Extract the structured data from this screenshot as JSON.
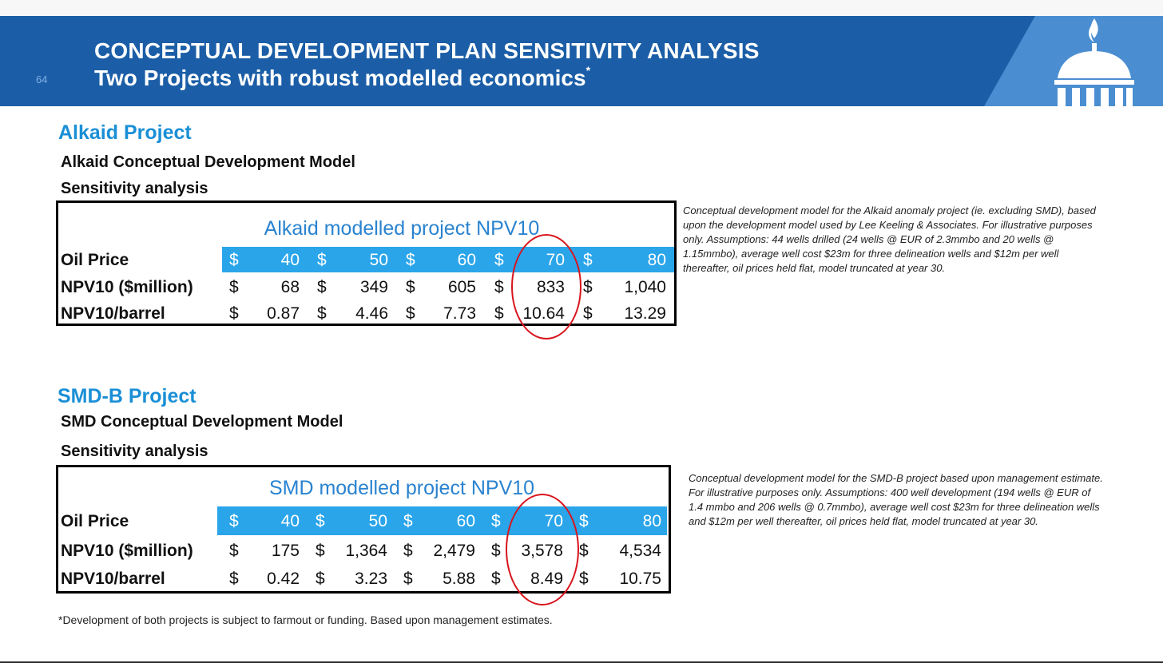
{
  "header": {
    "slide_number": "64",
    "title_line1": "CONCEPTUAL DEVELOPMENT PLAN SENSITIVITY ANALYSIS",
    "title_line2": "Two Projects with robust modelled economics",
    "title_mark": "*",
    "logo_icon": "temple-flame-logo"
  },
  "alkaid": {
    "section_title": "Alkaid Project",
    "model_title": "Alkaid Conceptual Development Model",
    "analysis_label": "Sensitivity analysis",
    "table_title": "Alkaid modelled project NPV10",
    "rows": [
      {
        "label": "Oil Price",
        "currency": [
          "$",
          "$",
          "$",
          "$",
          "$"
        ],
        "values": [
          "40",
          "50",
          "60",
          "70",
          "80"
        ]
      },
      {
        "label": "NPV10 ($million)",
        "currency": [
          "$",
          "$",
          "$",
          "$",
          "$"
        ],
        "values": [
          "68",
          "349",
          "605",
          "833",
          "1,040"
        ]
      },
      {
        "label": "NPV10/barrel",
        "currency": [
          "$",
          "$",
          "$",
          "$",
          "$"
        ],
        "values": [
          "0.87",
          "4.46",
          "7.73",
          "10.64",
          "13.29"
        ]
      }
    ],
    "note": "Conceptual development model for the Alkaid anomaly project (ie. excluding SMD), based upon the development model used by Lee Keeling & Associates. For illustrative purposes only.  Assumptions: 44 wells drilled (24 wells @ EUR of 2.3mmbo and 20 wells @ 1.15mmbo), average well cost $23m for three delineation wells and $12m per well thereafter, oil prices held flat, model truncated at year 30."
  },
  "smd": {
    "section_title": "SMD-B Project",
    "model_title": "SMD Conceptual Development Model",
    "analysis_label": "Sensitivity analysis",
    "table_title": "SMD modelled project NPV10",
    "rows": [
      {
        "label": "Oil Price",
        "currency": [
          "$",
          "$",
          "$",
          "$",
          "$"
        ],
        "values": [
          "40",
          "50",
          "60",
          "70",
          "80"
        ]
      },
      {
        "label": "NPV10 ($million)",
        "currency": [
          "$",
          "$",
          "$",
          "$",
          "$"
        ],
        "values": [
          "175",
          "1,364",
          "2,479",
          "3,578",
          "4,534"
        ]
      },
      {
        "label": "NPV10/barrel",
        "currency": [
          "$",
          "$",
          "$",
          "$",
          "$"
        ],
        "values": [
          "0.42",
          "3.23",
          "5.88",
          "8.49",
          "10.75"
        ]
      }
    ],
    "note": "Conceptual development model for the SMD-B project based upon management estimate. For illustrative purposes only.  Assumptions: 400 well development (194 wells @ EUR of 1.4 mmbo and 206 wells @ 0.7mmbo), average well cost $23m for three delineation wells and $12m per well thereafter, oil prices held flat, model truncated at year 30."
  },
  "footnote": "*Development of both projects is subject to farmout or funding. Based upon management estimates.",
  "colors": {
    "header_blue": "#1b5ea7",
    "header_light_blue": "#4a8ed1",
    "section_title_blue": "#1a8fd6",
    "band_blue": "#2aa5ea",
    "highlight_ellipse_red": "#d8141c"
  }
}
